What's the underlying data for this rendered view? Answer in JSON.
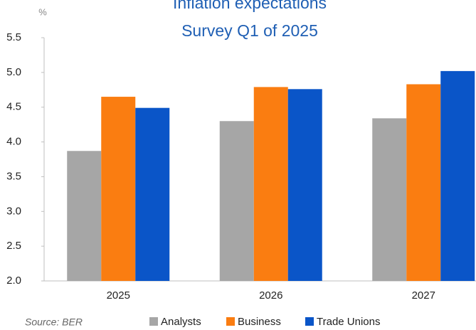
{
  "chart_data": {
    "type": "bar",
    "title": "Inflation expectations",
    "subtitle": "Survey Q1 of 2025",
    "y_label": "%",
    "source": "Source: BER",
    "categories": [
      "2025",
      "2026",
      "2027"
    ],
    "series": [
      {
        "name": "Analysts",
        "color": "#a6a6a6",
        "values": [
          3.87,
          4.3,
          4.34
        ]
      },
      {
        "name": "Business",
        "color": "#fa7d11",
        "values": [
          4.65,
          4.79,
          4.83
        ]
      },
      {
        "name": "Trade Unions",
        "color": "#0a55c8",
        "values": [
          4.49,
          4.76,
          5.02
        ]
      }
    ],
    "ylim": [
      2.0,
      5.5
    ],
    "yticks": [
      {
        "value": 2.0,
        "label": "2.0"
      },
      2.5,
      {
        "value": 3.0,
        "label": "3.0"
      },
      3.5,
      {
        "value": 4.0,
        "label": "4.0"
      },
      4.5,
      {
        "value": 5.0,
        "label": "5.0"
      },
      5.5
    ],
    "grid": false,
    "legend": "bottom"
  }
}
